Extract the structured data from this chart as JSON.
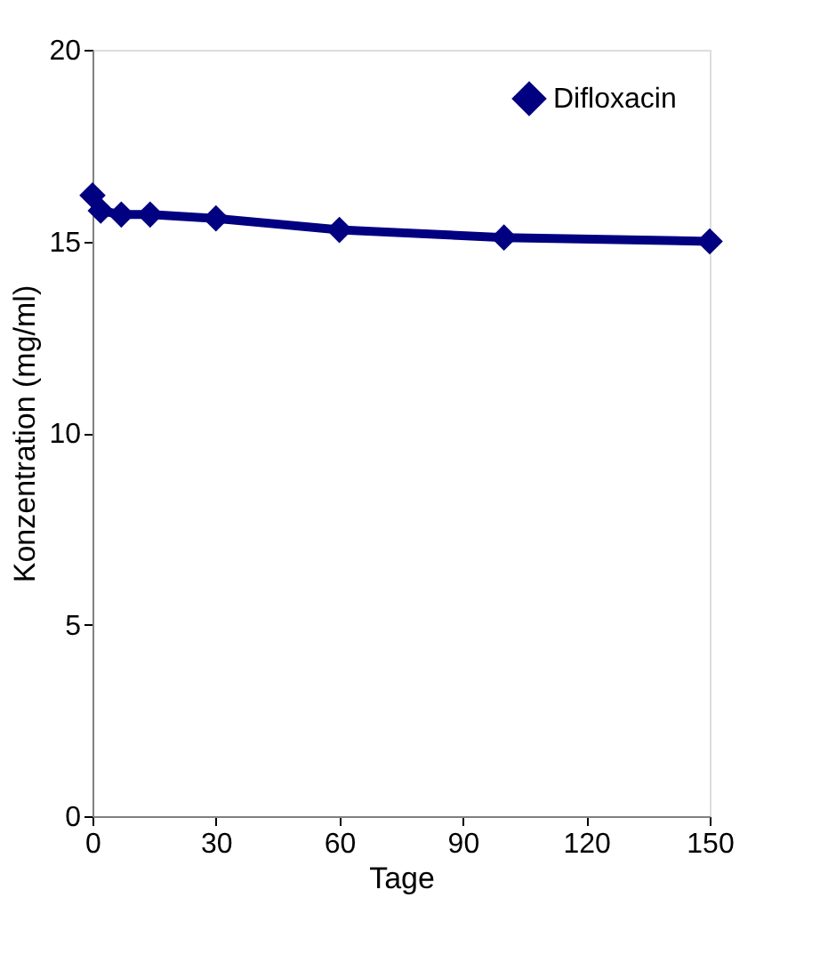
{
  "chart_data": {
    "type": "line",
    "xlabel": "Tage",
    "ylabel": "Konzentration (mg/ml)",
    "x": [
      0,
      2,
      7,
      14,
      30,
      60,
      100,
      150
    ],
    "series": [
      {
        "name": "Difloxacin",
        "color": "#000080",
        "values": [
          16.2,
          15.8,
          15.7,
          15.7,
          15.6,
          15.3,
          15.1,
          15.0
        ]
      }
    ],
    "xlim": [
      0,
      150
    ],
    "xticks": [
      0,
      30,
      60,
      90,
      120,
      150
    ],
    "ylim": [
      0,
      20
    ],
    "yticks": [
      0,
      5,
      10,
      15,
      20
    ],
    "marker": "diamond",
    "line_style": "solid",
    "grid": false,
    "legend": "top right"
  }
}
